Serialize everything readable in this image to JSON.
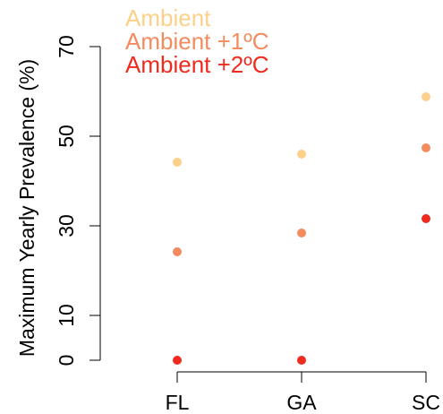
{
  "chart_data": {
    "type": "scatter",
    "y_label": "Maximum Yearly Prevalence (%)",
    "categories": [
      "FL",
      "GA",
      "SC"
    ],
    "series": [
      {
        "name": "Ambient",
        "color": "#fdd08a",
        "values": [
          44.2,
          46,
          58.8
        ]
      },
      {
        "name": "Ambient +1ºC",
        "color": "#f48b5e",
        "values": [
          24.2,
          28.4,
          47.4
        ]
      },
      {
        "name": "Ambient +2ºC",
        "color": "#ee2b1e",
        "values": [
          0,
          0,
          31.6
        ]
      }
    ],
    "ylim": [
      0,
      70
    ],
    "yticks": [
      0,
      10,
      30,
      50,
      70
    ],
    "legend": "top-left"
  }
}
